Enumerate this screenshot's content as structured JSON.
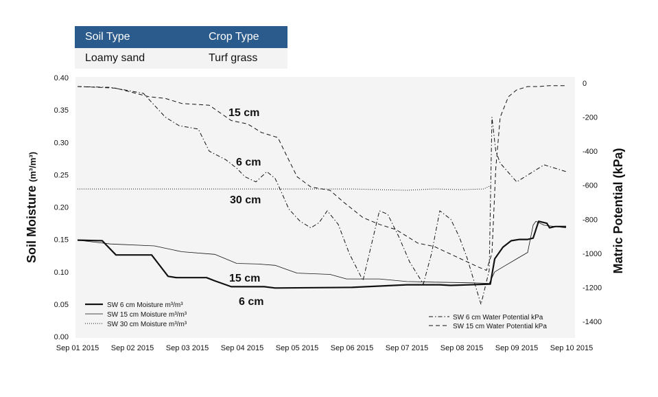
{
  "info_table": {
    "headers": [
      "Soil Type",
      "Crop Type"
    ],
    "values": [
      "Loamy sand",
      "Turf grass"
    ]
  },
  "chart_data": {
    "type": "line",
    "ylabel": "Soil Moisture",
    "ylabel_unit": "(m³/m³)",
    "y2label": "Matric Potential (kPa)",
    "x_ticks": [
      "Sep 01 2015",
      "Sep 02 2015",
      "Sep 03 2015",
      "Sep 04 2015",
      "Sep 05 2015",
      "Sep 06 2015",
      "Sep 07 2015",
      "Sep 08 2015",
      "Sep 09 2015",
      "Sep 10 2015"
    ],
    "xlim": [
      0,
      9
    ],
    "ylim": [
      0,
      0.4
    ],
    "y_ticks": [
      "0.00",
      "0.05",
      "0.10",
      "0.15",
      "0.20",
      "0.25",
      "0.30",
      "0.35",
      "0.40"
    ],
    "y2lim": [
      -1500,
      40
    ],
    "y2_ticks": [
      "0",
      "-200",
      "-400",
      "-600",
      "-800",
      "-1000",
      "-1200",
      "-1400"
    ],
    "grid": false,
    "legend_left": [
      "SW 6 cm Moisture m³/m³",
      "SW 15 cm Moisture m³/m³",
      "SW 30 cm Moisture m³/m³"
    ],
    "legend_right": [
      "SW 6 cm Water Potential kPa",
      "SW 15 cm Water Potential kPa"
    ],
    "annotations": [
      "15 cm",
      "6 cm",
      "30 cm",
      "15 cm",
      "6 cm"
    ],
    "series": [
      {
        "name": "SW 6 cm Moisture m³/m³",
        "axis": "left",
        "style": "solid-thick",
        "x": [
          0,
          0.45,
          0.7,
          1.35,
          1.65,
          1.8,
          2.35,
          2.5,
          2.8,
          3.4,
          3.6,
          5.0,
          6.0,
          6.4,
          6.6,
          6.8,
          7.5,
          7.52,
          7.6,
          7.75,
          7.9,
          8.05,
          8.2,
          8.3,
          8.4,
          8.55,
          8.6,
          8.7,
          8.9
        ],
        "y": [
          0.149,
          0.148,
          0.126,
          0.126,
          0.093,
          0.091,
          0.091,
          0.086,
          0.077,
          0.077,
          0.075,
          0.076,
          0.08,
          0.08,
          0.08,
          0.079,
          0.081,
          0.081,
          0.12,
          0.138,
          0.148,
          0.15,
          0.15,
          0.152,
          0.178,
          0.175,
          0.168,
          0.17,
          0.17
        ]
      },
      {
        "name": "SW 15 cm Moisture m³/m³",
        "axis": "left",
        "style": "solid-thin",
        "x": [
          0,
          0.6,
          1.4,
          1.9,
          2.5,
          2.9,
          3.3,
          3.6,
          3.8,
          4.0,
          4.6,
          4.9,
          5.5,
          6.0,
          6.5,
          7.2,
          7.5,
          7.6,
          7.8,
          8.0,
          8.2,
          8.3,
          8.35,
          8.5,
          8.9
        ],
        "y": [
          0.149,
          0.143,
          0.14,
          0.131,
          0.127,
          0.113,
          0.112,
          0.11,
          0.104,
          0.098,
          0.096,
          0.089,
          0.089,
          0.085,
          0.084,
          0.083,
          0.082,
          0.1,
          0.11,
          0.12,
          0.13,
          0.172,
          0.178,
          0.172,
          0.168
        ]
      },
      {
        "name": "SW 30 cm Moisture m³/m³",
        "axis": "left",
        "style": "dotted",
        "x": [
          0,
          1,
          2,
          3,
          4,
          5,
          5.5,
          6,
          6.5,
          7,
          7.4,
          7.5
        ],
        "y": [
          0.228,
          0.228,
          0.228,
          0.228,
          0.228,
          0.228,
          0.227,
          0.226,
          0.228,
          0.227,
          0.228,
          0.232
        ]
      },
      {
        "name": "SW 6 cm Water Potential kPa",
        "axis": "right",
        "style": "dashdot",
        "x": [
          0,
          0.6,
          1.2,
          1.6,
          1.85,
          2.2,
          2.4,
          2.7,
          2.9,
          3.05,
          3.25,
          3.45,
          3.6,
          3.7,
          3.85,
          4.05,
          4.25,
          4.4,
          4.55,
          4.75,
          4.95,
          5.2,
          5.5,
          5.65,
          5.85,
          6.05,
          6.3,
          6.45,
          6.6,
          6.8,
          6.95,
          7.1,
          7.35,
          7.5,
          7.55,
          7.62,
          7.7,
          8.0,
          8.5,
          8.9
        ],
        "y": [
          -20,
          -25,
          -60,
          -200,
          -250,
          -270,
          -400,
          -450,
          -500,
          -550,
          -580,
          -520,
          -560,
          -630,
          -740,
          -810,
          -850,
          -820,
          -750,
          -830,
          -1000,
          -1160,
          -750,
          -770,
          -900,
          -1050,
          -1180,
          -1000,
          -750,
          -800,
          -900,
          -1030,
          -1300,
          -1100,
          -200,
          -400,
          -470,
          -580,
          -480,
          -520
        ]
      },
      {
        "name": "SW 15 cm Water Potential kPa",
        "axis": "right",
        "style": "dashed",
        "x": [
          0,
          0.4,
          0.7,
          1.3,
          1.6,
          1.9,
          2.4,
          2.8,
          3.1,
          3.35,
          3.65,
          3.8,
          4.0,
          4.25,
          4.6,
          4.85,
          5.2,
          5.5,
          5.8,
          6.0,
          6.2,
          6.5,
          6.7,
          6.9,
          7.1,
          7.3,
          7.45,
          7.55,
          7.62,
          7.7,
          7.85,
          8.0,
          8.2,
          8.4,
          8.6,
          8.9
        ],
        "y": [
          -20,
          -25,
          -30,
          -80,
          -90,
          -120,
          -130,
          -220,
          -240,
          -290,
          -320,
          -420,
          -550,
          -610,
          -630,
          -700,
          -790,
          -830,
          -860,
          -900,
          -940,
          -960,
          -990,
          -1020,
          -1050,
          -1080,
          -1100,
          -1000,
          -500,
          -200,
          -80,
          -40,
          -20,
          -20,
          -15,
          -15
        ]
      }
    ]
  }
}
